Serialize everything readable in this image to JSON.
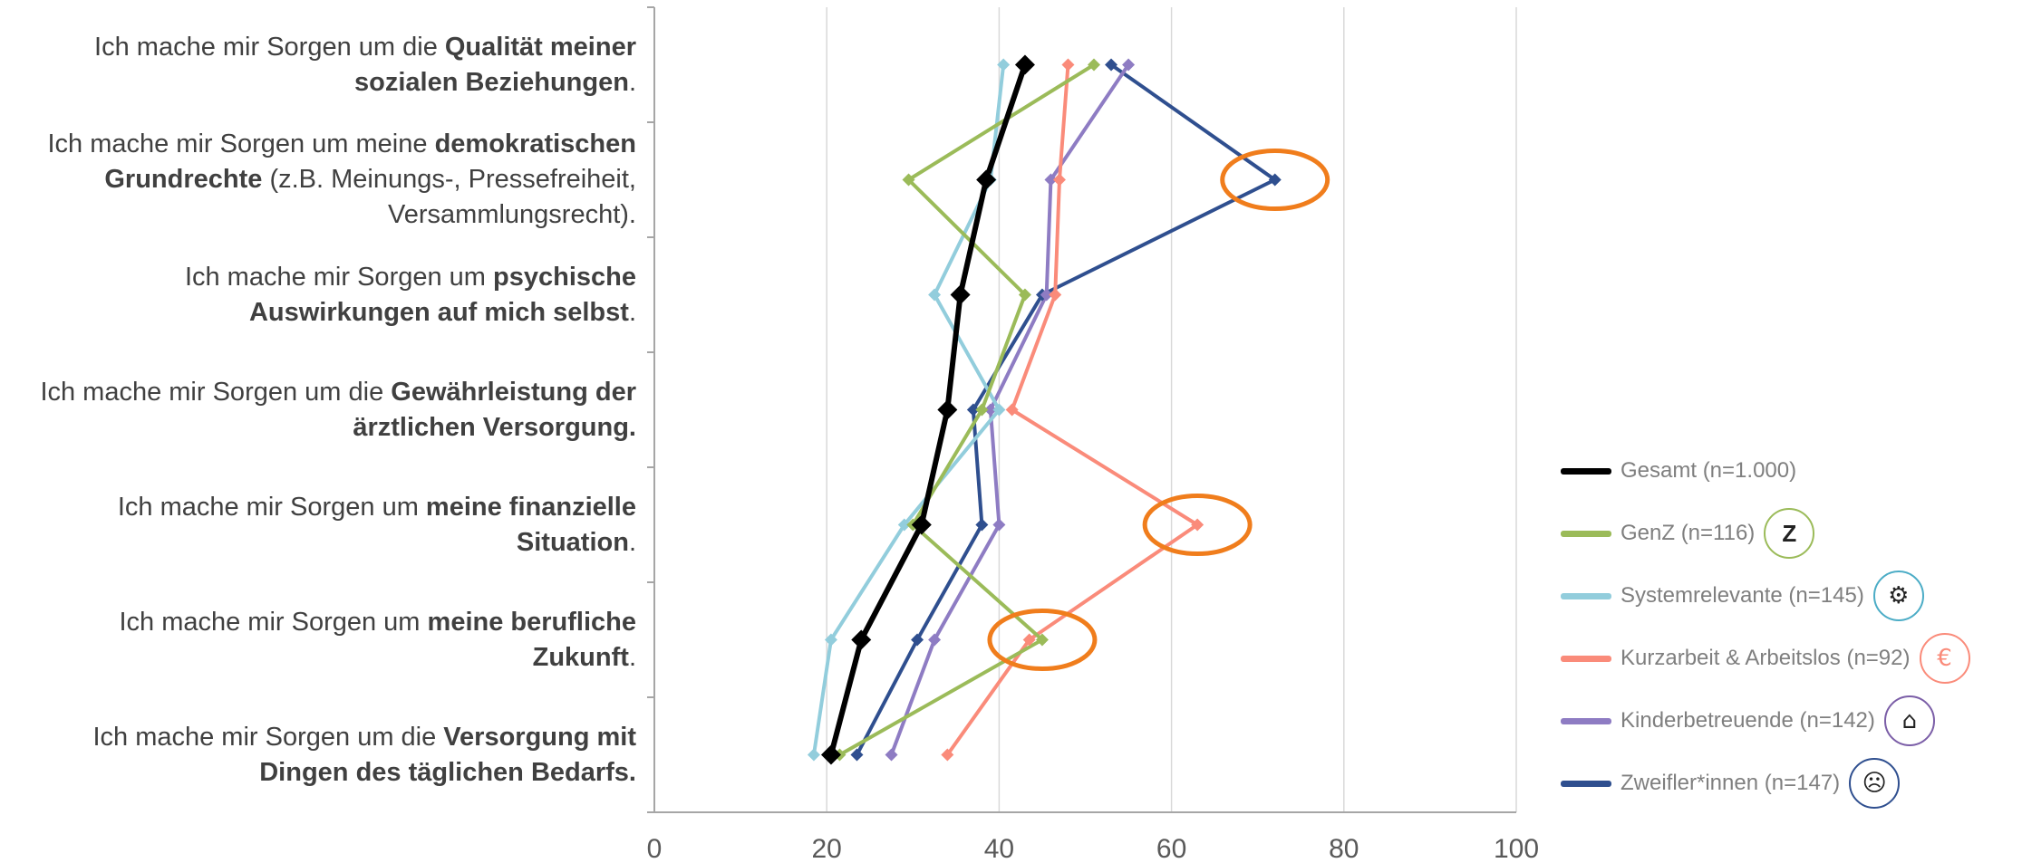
{
  "chart_data": {
    "type": "line",
    "orientation": "horizontal-values",
    "xlim": [
      0,
      100
    ],
    "x_ticks": [
      "0",
      "20",
      "40",
      "60",
      "80",
      "100"
    ],
    "grid": true,
    "legend_position": "right",
    "categories": [
      [
        {
          "t": "Ich mache mir Sorgen um die ",
          "b": false
        },
        {
          "t": "Qualität meiner sozialen Beziehungen",
          "b": true
        },
        {
          "t": ".",
          "b": false
        }
      ],
      [
        {
          "t": "Ich mache mir Sorgen um meine ",
          "b": false
        },
        {
          "t": "demokratischen Grundrechte",
          "b": true
        },
        {
          "t": " (z.B. Meinungs-, Pressefreiheit, Versammlungsrecht).",
          "b": false
        }
      ],
      [
        {
          "t": "Ich mache mir Sorgen um ",
          "b": false
        },
        {
          "t": "psychische Auswirkungen auf mich selbst",
          "b": true
        },
        {
          "t": ".",
          "b": false
        }
      ],
      [
        {
          "t": "Ich mache mir Sorgen um die ",
          "b": false
        },
        {
          "t": "Gewährleistung der ärztlichen Versorgung.",
          "b": true
        }
      ],
      [
        {
          "t": "Ich mache mir Sorgen um ",
          "b": false
        },
        {
          "t": "meine finanzielle Situation",
          "b": true
        },
        {
          "t": ".",
          "b": false
        }
      ],
      [
        {
          "t": "Ich mache mir Sorgen um ",
          "b": false
        },
        {
          "t": "meine berufliche Zukunft",
          "b": true
        },
        {
          "t": ".",
          "b": false
        }
      ],
      [
        {
          "t": "Ich mache mir Sorgen um die ",
          "b": false
        },
        {
          "t": "Versorgung mit Dingen des täglichen Bedarfs.",
          "b": true
        }
      ]
    ],
    "series": [
      {
        "name": "Gesamt (n=1.000)",
        "color": "#000000",
        "values": [
          43,
          38.5,
          35.5,
          34,
          31,
          24,
          20.5
        ],
        "width": 6,
        "marker": 22,
        "icon": null,
        "icon_color": null
      },
      {
        "name": "GenZ (n=116)",
        "color": "#9bbb59",
        "values": [
          51,
          29.5,
          43,
          38,
          30,
          45,
          21.5
        ],
        "width": 4,
        "marker": 14,
        "icon": "Z",
        "icon_color": "#9bbb59"
      },
      {
        "name": "Systemrelevante (n=145)",
        "color": "#92cddc",
        "values": [
          40.5,
          39,
          32.5,
          40,
          29,
          20.5,
          18.5
        ],
        "width": 4,
        "marker": 14,
        "icon": "⚙",
        "icon_color": "#4bacc6"
      },
      {
        "name": "Kurzarbeit & Arbeitslos (n=92)",
        "color": "#fa8b7a",
        "values": [
          48,
          47,
          46.5,
          41.5,
          63,
          43.5,
          34
        ],
        "width": 4,
        "marker": 14,
        "icon": "€",
        "icon_color": "#fa8b7a"
      },
      {
        "name": "Kinderbetreuende (n=142)",
        "color": "#8e7cc3",
        "values": [
          55,
          46,
          45.5,
          39,
          40,
          32.5,
          27.5
        ],
        "width": 4,
        "marker": 14,
        "icon": "⌂",
        "icon_color": "#7b5ea7"
      },
      {
        "name": "Zweifler*innen (n=147)",
        "color": "#2f4f8f",
        "values": [
          53,
          72,
          45,
          37,
          38,
          30.5,
          23.5
        ],
        "width": 4,
        "marker": 14,
        "icon": "☹",
        "icon_color": "#2f4f8f"
      }
    ],
    "highlights": [
      {
        "category_index": 1,
        "x": 72
      },
      {
        "category_index": 4,
        "x": 63
      },
      {
        "category_index": 5,
        "x": 45
      }
    ],
    "highlight_color": "#f07d1c"
  }
}
